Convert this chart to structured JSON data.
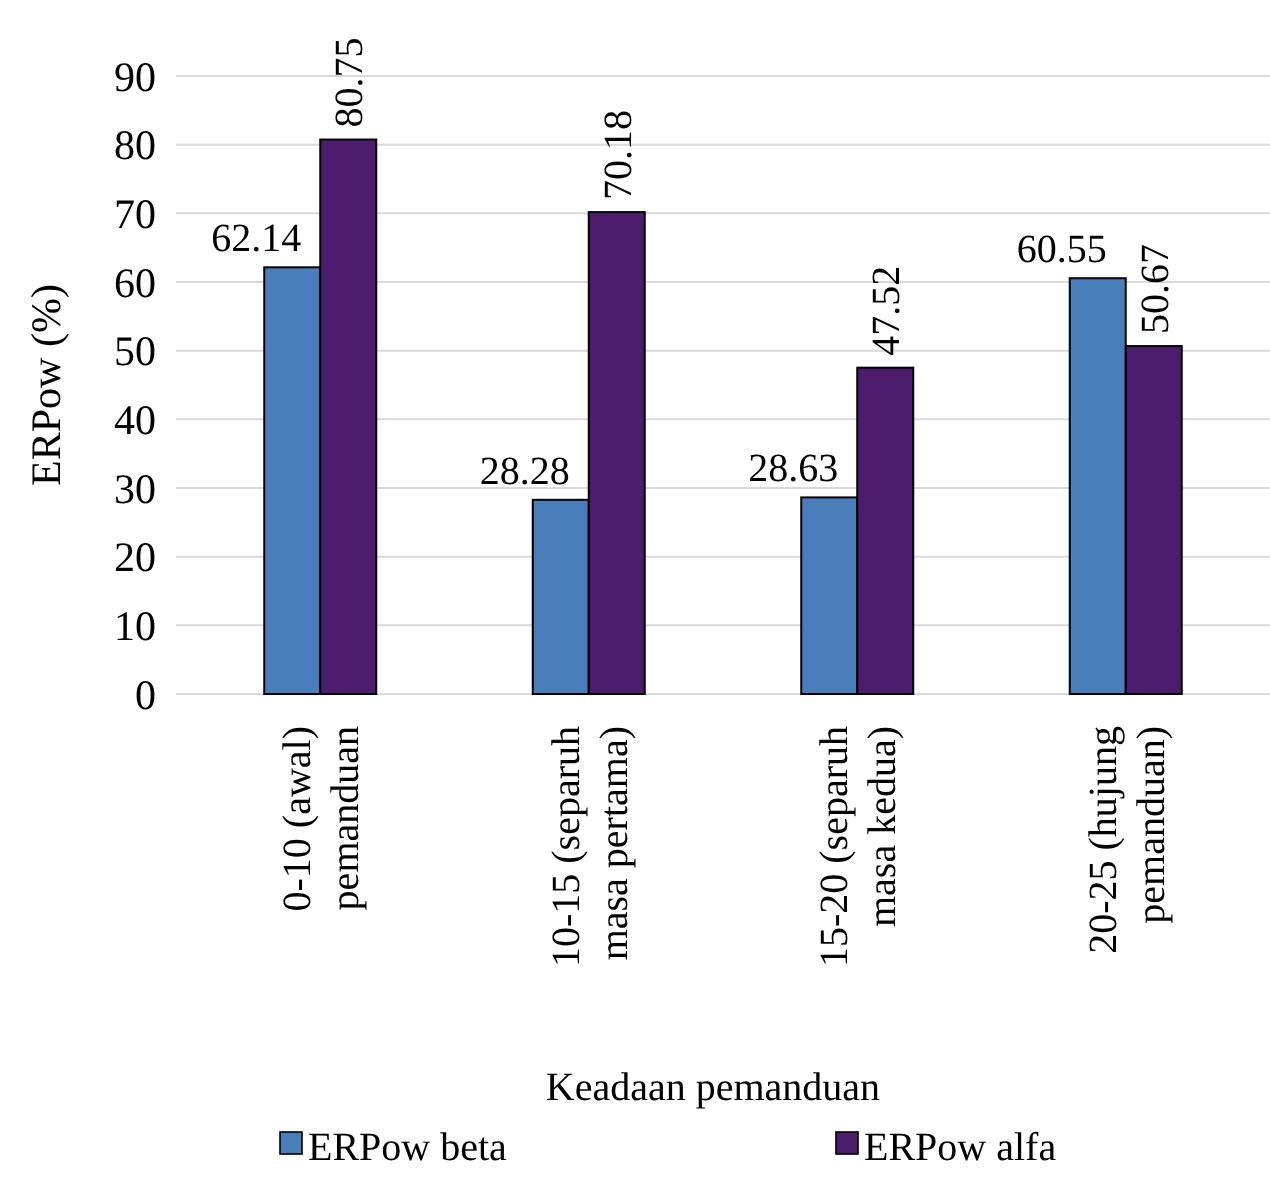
{
  "chart_data": {
    "type": "bar",
    "xlabel": "Keadaan pemanduan",
    "ylabel": "ERPow (%)",
    "categories": [
      "0-10 (awal)\npemanduan",
      "10-15 (separuh\nmasa pertama)",
      "15-20 (separuh\nmasa kedua)",
      "20-25 (hujung\npemanduan)"
    ],
    "series": [
      {
        "name": "ERPow beta",
        "color": "#4a7ebb",
        "values": [
          62.14,
          28.28,
          28.63,
          60.55
        ]
      },
      {
        "name": "ERPow alfa",
        "color": "#4b1d6c",
        "values": [
          80.75,
          70.18,
          47.52,
          50.67
        ]
      }
    ],
    "ylim": [
      0,
      90
    ],
    "yticks": [
      0,
      10,
      20,
      30,
      40,
      50,
      60,
      70,
      80,
      90
    ],
    "grid": "y",
    "legend": "bottom",
    "data_labels": true
  }
}
